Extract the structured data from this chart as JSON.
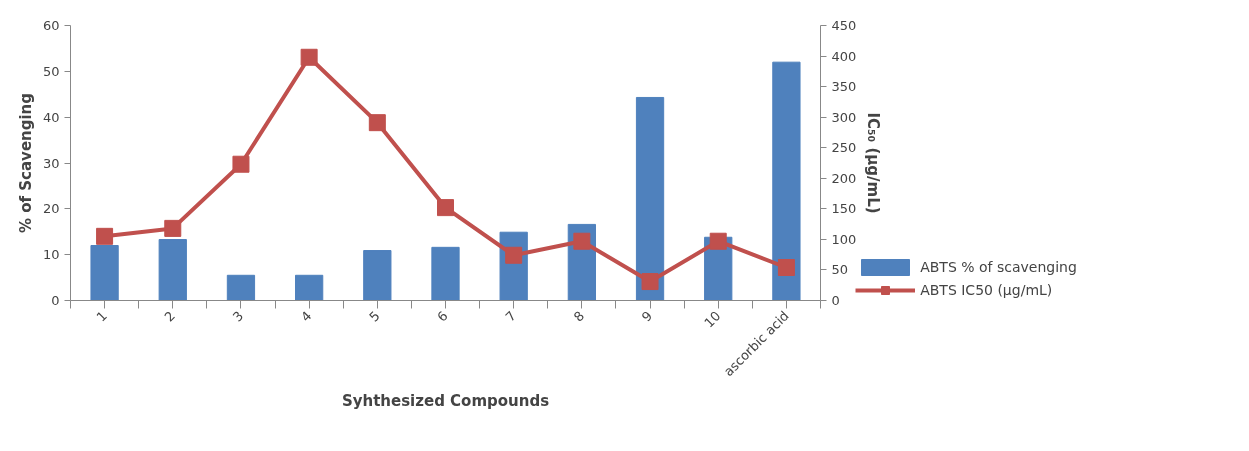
{
  "chart_data": {
    "type": "bar",
    "xlabel": "Syhthesized Compounds",
    "ylabel": "% of Scavenging",
    "y2label": "IC₅₀ (µg/mL)",
    "categories": [
      "1",
      "2",
      "3",
      "4",
      "5",
      "6",
      "7",
      "8",
      "9",
      "10",
      "ascorbic acid"
    ],
    "series": [
      {
        "name": "ABTS % of scavenging",
        "color": "#4f81bd",
        "values": [
          12,
          13.3,
          5.5,
          5.5,
          10.9,
          11.6,
          14.9,
          16.6,
          44.3,
          13.8,
          52
        ]
      },
      {
        "name": "ABTS IC50 (µg/mL)",
        "type": "line",
        "axis": "y2",
        "color": "#c0504d",
        "marker": "square",
        "values": [
          105,
          118,
          223,
          398,
          291,
          152,
          74,
          97,
          31,
          97,
          54
        ]
      }
    ],
    "ylim": [
      0,
      60
    ],
    "yticks": [
      0,
      10,
      20,
      30,
      40,
      50,
      60
    ],
    "y2lim": [
      0,
      450
    ],
    "y2ticks": [
      0,
      50,
      100,
      150,
      200,
      250,
      300,
      350,
      400,
      450
    ],
    "grid": false,
    "legend": "right"
  }
}
